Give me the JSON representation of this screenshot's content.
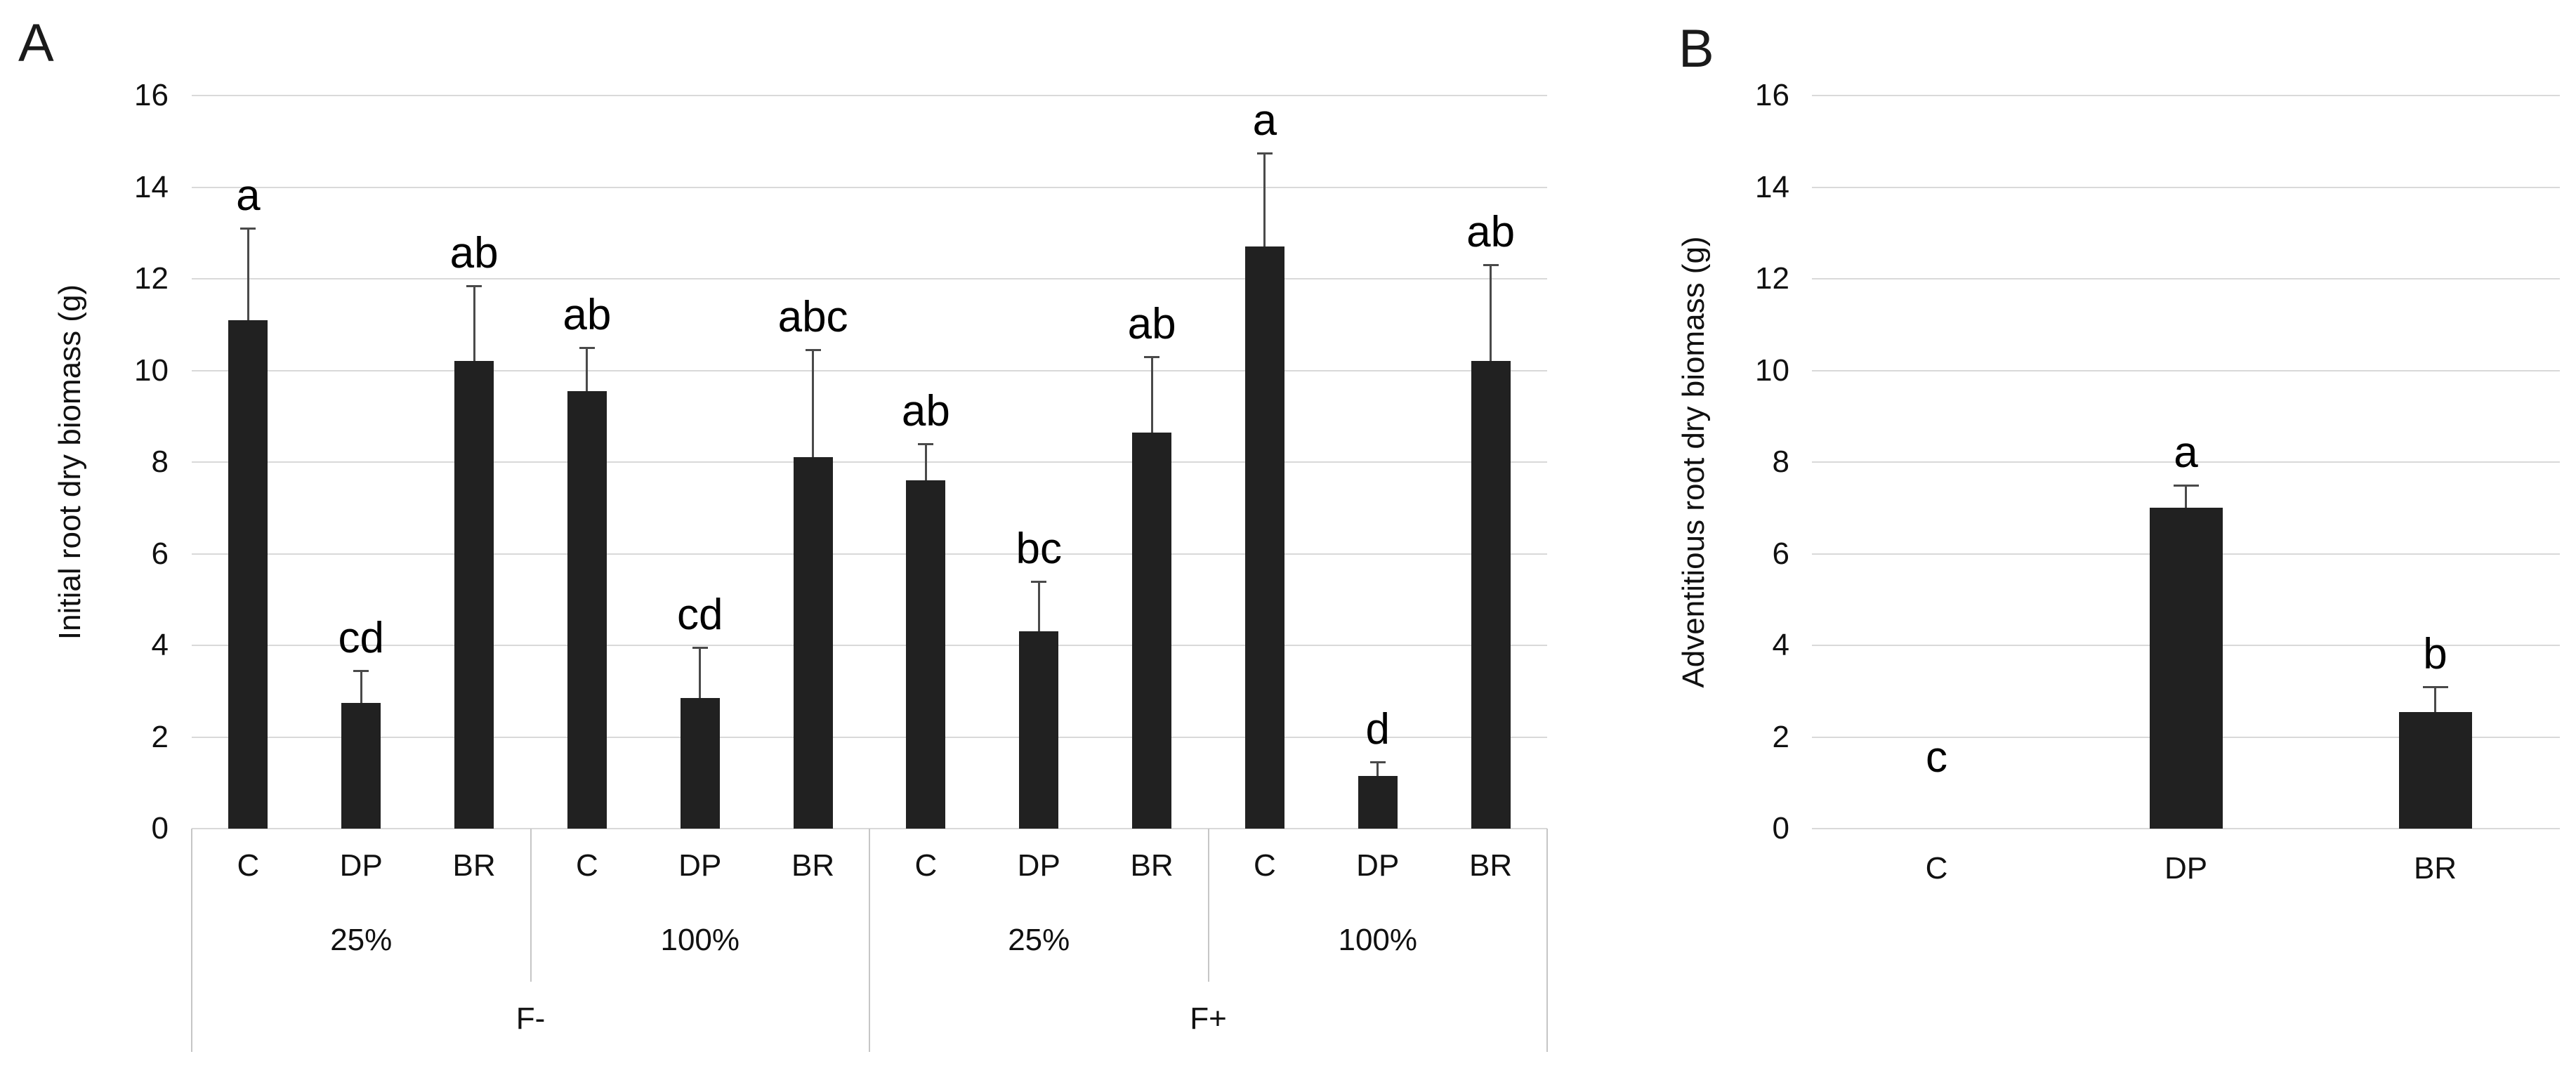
{
  "panels": [
    {
      "label": "A"
    },
    {
      "label": "B"
    }
  ],
  "chart_data": [
    {
      "type": "bar",
      "panel": "A",
      "title": "",
      "xlabel": "",
      "ylabel": "Initial root dry biomass (g)",
      "ylim": [
        0,
        16
      ],
      "yticks": [
        0,
        2,
        4,
        6,
        8,
        10,
        12,
        14,
        16
      ],
      "grid": true,
      "legend_position": "none",
      "bar_color": "#212121",
      "grid_color": "#d9d9d9",
      "error_color": "#4a4a4a",
      "axis_box_color": "#c6c6c6",
      "categories": [
        "C",
        "DP",
        "BR",
        "C",
        "DP",
        "BR",
        "C",
        "DP",
        "BR",
        "C",
        "DP",
        "BR"
      ],
      "series": [
        {
          "name": "Initial root dry biomass",
          "values": [
            11.1,
            2.75,
            10.2,
            9.55,
            2.85,
            8.1,
            7.6,
            4.3,
            8.65,
            12.7,
            1.15,
            10.2
          ],
          "errors_up": [
            2.0,
            0.7,
            1.65,
            0.95,
            1.1,
            2.35,
            0.8,
            1.1,
            1.65,
            2.05,
            0.3,
            2.1
          ]
        }
      ],
      "sig_letters": [
        "a",
        "cd",
        "ab",
        "ab",
        "cd",
        "abc",
        "ab",
        "bc",
        "ab",
        "a",
        "d",
        "ab"
      ],
      "axis_groups": {
        "level2": [
          {
            "label": "25%",
            "span": 3
          },
          {
            "label": "100%",
            "span": 3
          },
          {
            "label": "25%",
            "span": 3
          },
          {
            "label": "100%",
            "span": 3
          }
        ],
        "level3": [
          {
            "label": "F-",
            "span": 6
          },
          {
            "label": "F+",
            "span": 6
          }
        ]
      }
    },
    {
      "type": "bar",
      "panel": "B",
      "title": "",
      "xlabel": "",
      "ylabel": "Adventitious root dry biomass (g)",
      "ylim": [
        0,
        16
      ],
      "yticks": [
        0,
        2,
        4,
        6,
        8,
        10,
        12,
        14,
        16
      ],
      "grid": true,
      "legend_position": "none",
      "bar_color": "#212121",
      "grid_color": "#d9d9d9",
      "error_color": "#4a4a4a",
      "categories": [
        "C",
        "DP",
        "BR"
      ],
      "series": [
        {
          "name": "Adventitious root dry biomass",
          "values": [
            0,
            7.0,
            2.55
          ],
          "errors_up": [
            0,
            0.5,
            0.55
          ]
        }
      ],
      "sig_letters": [
        "c",
        "a",
        "b"
      ],
      "letter_y_override": [
        1.05,
        null,
        null
      ]
    }
  ]
}
